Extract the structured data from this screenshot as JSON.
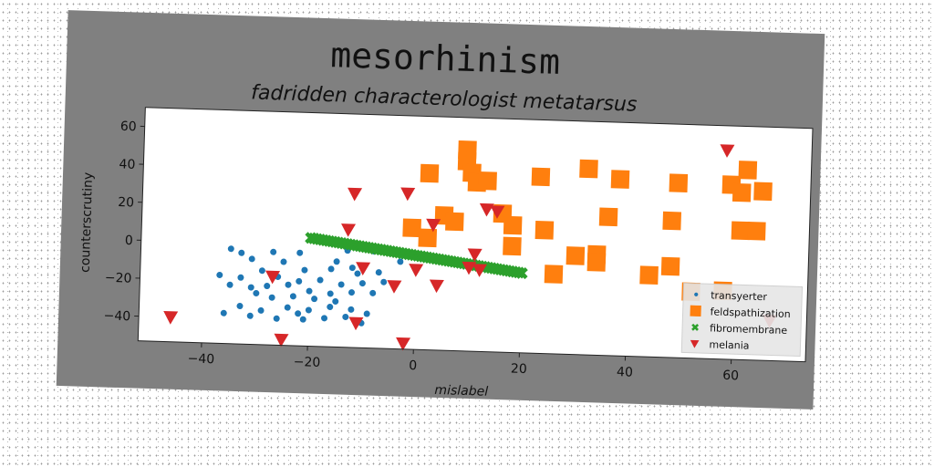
{
  "chart_data": {
    "type": "scatter",
    "title": "mesorhinism",
    "subtitle": "fadridden characterologist metatarsus",
    "xlabel": "mislabel",
    "ylabel": "counterscrutiny",
    "xlim": [
      -52,
      74
    ],
    "ylim": [
      -53,
      70
    ],
    "xticks": [
      -40,
      -20,
      0,
      20,
      40,
      60
    ],
    "yticks": [
      -40,
      -20,
      0,
      20,
      40,
      60
    ],
    "grid": false,
    "legend_position": "lower-right",
    "series": [
      {
        "name": "transyerter",
        "marker": "circle",
        "color": "#1f77b4",
        "points": [
          [
            -35,
            -3
          ],
          [
            -33,
            -5
          ],
          [
            -27,
            -4
          ],
          [
            -22,
            -4
          ],
          [
            -13,
            -2
          ],
          [
            -8,
            -2
          ],
          [
            -3,
            -7
          ],
          [
            -31,
            -8
          ],
          [
            -25,
            -9
          ],
          [
            -15,
            -8
          ],
          [
            -12,
            -11
          ],
          [
            -29,
            -14
          ],
          [
            -21,
            -13
          ],
          [
            -16,
            -12
          ],
          [
            -11,
            -14
          ],
          [
            -7,
            -13
          ],
          [
            -37,
            -17
          ],
          [
            -33,
            -18
          ],
          [
            -26,
            -17
          ],
          [
            -22,
            -19
          ],
          [
            -18,
            -18
          ],
          [
            -14,
            -20
          ],
          [
            -10,
            -19
          ],
          [
            -6,
            -18
          ],
          [
            -35,
            -22
          ],
          [
            -31,
            -23
          ],
          [
            -28,
            -22
          ],
          [
            -24,
            -21
          ],
          [
            -20,
            -24
          ],
          [
            -16,
            -25
          ],
          [
            -12,
            -24
          ],
          [
            -30,
            -26
          ],
          [
            -27,
            -28
          ],
          [
            -23,
            -27
          ],
          [
            -19,
            -28
          ],
          [
            -15,
            -29
          ],
          [
            -8,
            -24
          ],
          [
            -33,
            -33
          ],
          [
            -29,
            -35
          ],
          [
            -24,
            -33
          ],
          [
            -20,
            -34
          ],
          [
            -16,
            -32
          ],
          [
            -12,
            -33
          ],
          [
            -9,
            -35
          ],
          [
            -36,
            -37
          ],
          [
            -31,
            -38
          ],
          [
            -26,
            -39
          ],
          [
            -21,
            -39
          ],
          [
            -17,
            -38
          ],
          [
            -13,
            -37
          ],
          [
            -10,
            -40
          ],
          [
            -22,
            -36
          ]
        ]
      },
      {
        "name": "feldspathization",
        "marker": "square",
        "color": "#ff7f0e",
        "points": [
          [
            9,
            53
          ],
          [
            9,
            47
          ],
          [
            10,
            41
          ],
          [
            11,
            36
          ],
          [
            13,
            37
          ],
          [
            2,
            40
          ],
          [
            23,
            40
          ],
          [
            32,
            45
          ],
          [
            38,
            40
          ],
          [
            49,
            39
          ],
          [
            59,
            39
          ],
          [
            62,
            47
          ],
          [
            61,
            35
          ],
          [
            65,
            36
          ],
          [
            5,
            18
          ],
          [
            7,
            15
          ],
          [
            16,
            20
          ],
          [
            18,
            14
          ],
          [
            24,
            12
          ],
          [
            36,
            20
          ],
          [
            48,
            19
          ],
          [
            61,
            15
          ],
          [
            64,
            15
          ],
          [
            -1,
            11
          ],
          [
            2,
            6
          ],
          [
            18,
            3
          ],
          [
            30,
            -1
          ],
          [
            34,
            0
          ],
          [
            34,
            -4
          ],
          [
            48,
            -5
          ],
          [
            44,
            -10
          ],
          [
            26,
            -11
          ],
          [
            52,
            -18
          ],
          [
            58,
            -17
          ]
        ]
      },
      {
        "name": "fibromembrane",
        "marker": "x",
        "color": "#2ca02c",
        "line_from": [
          -20,
          4
        ],
        "line_to": [
          20,
          -11
        ],
        "count": 70
      },
      {
        "name": "melania",
        "marker": "triangle-down",
        "color": "#d62728",
        "points": [
          [
            58,
            57
          ],
          [
            -12,
            28
          ],
          [
            -2,
            29
          ],
          [
            13,
            22
          ],
          [
            15,
            21
          ],
          [
            3,
            13
          ],
          [
            -13,
            9
          ],
          [
            11,
            -2
          ],
          [
            -10,
            -11
          ],
          [
            0,
            -11
          ],
          [
            10,
            -9
          ],
          [
            12,
            -10
          ],
          [
            -27,
            -17
          ],
          [
            -4,
            -20
          ],
          [
            4,
            -19
          ],
          [
            -46,
            -40
          ],
          [
            -11,
            -40
          ],
          [
            -25,
            -50
          ],
          [
            -2,
            -50
          ],
          [
            67,
            -32
          ]
        ]
      }
    ]
  }
}
